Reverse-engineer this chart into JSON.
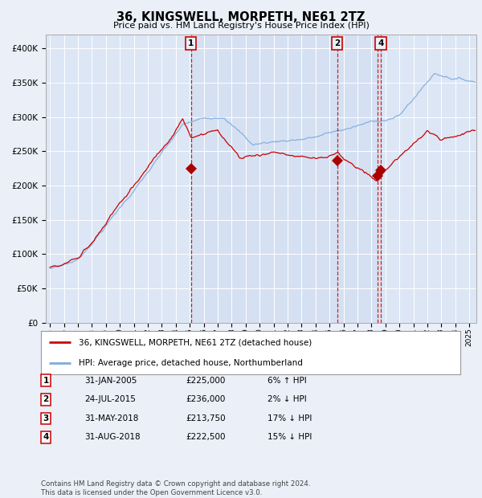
{
  "title": "36, KINGSWELL, MORPETH, NE61 2TZ",
  "subtitle": "Price paid vs. HM Land Registry's House Price Index (HPI)",
  "background_color": "#eaeff8",
  "plot_bg_color": "#dce6f5",
  "shade_color": "#c8d8ee",
  "legend_entries": [
    "36, KINGSWELL, MORPETH, NE61 2TZ (detached house)",
    "HPI: Average price, detached house, Northumberland"
  ],
  "legend_line_colors": [
    "#cc0000",
    "#7faadd"
  ],
  "sale_year_floats": [
    2005.083,
    2015.558,
    2018.417,
    2018.667
  ],
  "sale_prices": [
    225000,
    236000,
    213750,
    222500
  ],
  "sale_labels": [
    "1",
    "2",
    "3",
    "4"
  ],
  "shown_label_indices": [
    0,
    1,
    3
  ],
  "table_data": [
    [
      "1",
      "31-JAN-2005",
      "£225,000",
      "6% ↑ HPI"
    ],
    [
      "2",
      "24-JUL-2015",
      "£236,000",
      "2% ↓ HPI"
    ],
    [
      "3",
      "31-MAY-2018",
      "£213,750",
      "17% ↓ HPI"
    ],
    [
      "4",
      "31-AUG-2018",
      "£222,500",
      "15% ↓ HPI"
    ]
  ],
  "footer": "Contains HM Land Registry data © Crown copyright and database right 2024.\nThis data is licensed under the Open Government Licence v3.0.",
  "ylim": [
    0,
    420000
  ],
  "yticks": [
    0,
    50000,
    100000,
    150000,
    200000,
    250000,
    300000,
    350000,
    400000
  ],
  "ytick_labels": [
    "£0",
    "£50K",
    "£100K",
    "£150K",
    "£200K",
    "£250K",
    "£300K",
    "£350K",
    "£400K"
  ],
  "xlim_left": 1994.7,
  "xlim_right": 2025.5
}
